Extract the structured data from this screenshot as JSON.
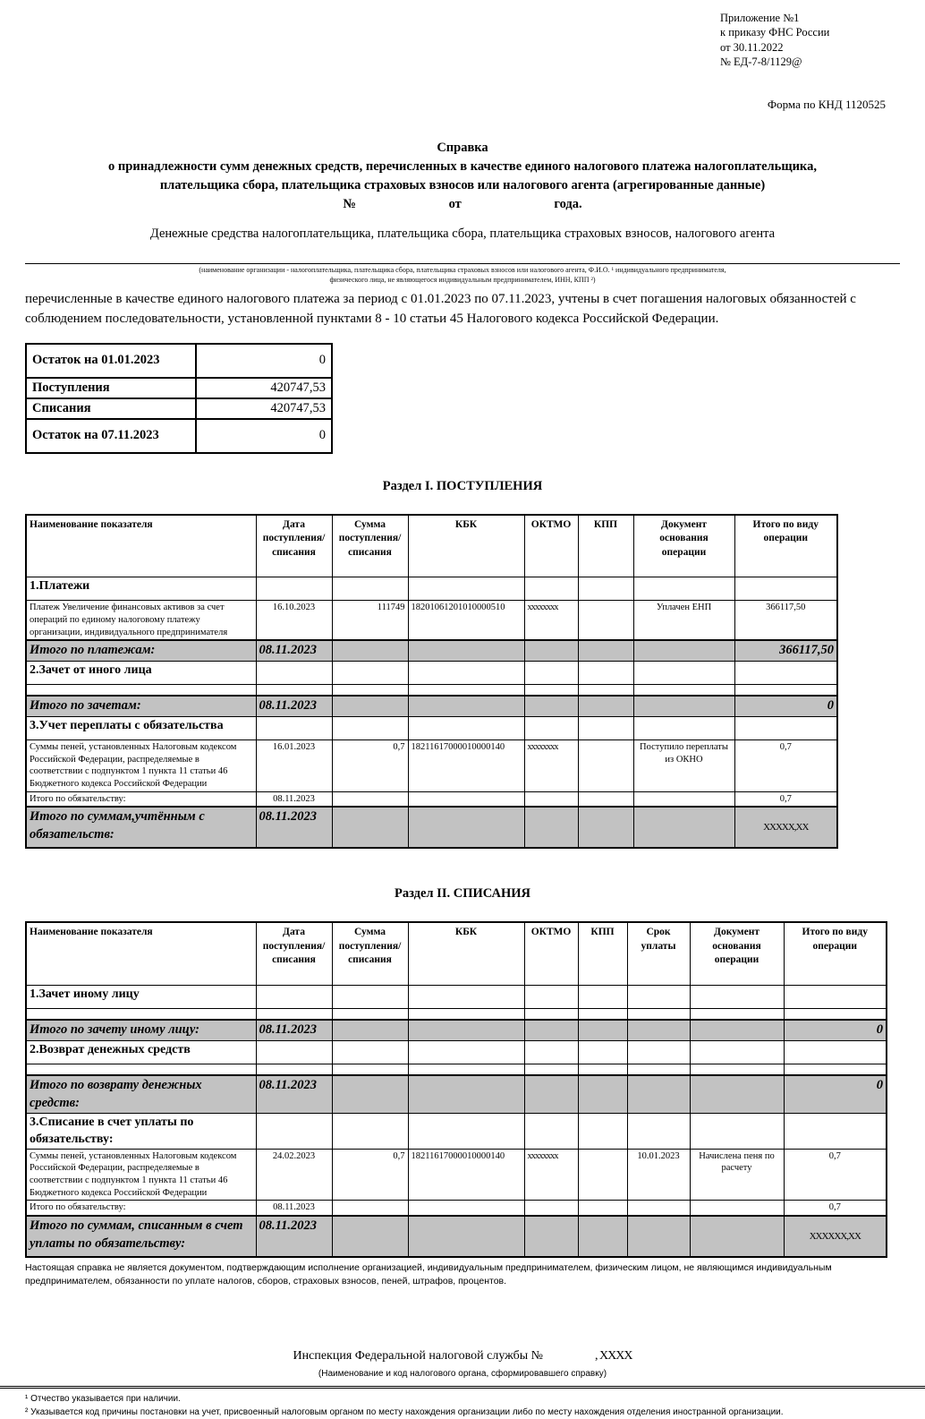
{
  "header": {
    "appendix_lines": [
      "Приложение №1",
      "к приказу ФНС России",
      "от 30.11.2022",
      "№ ЕД-7-8/1129@"
    ],
    "knd": "Форма по КНД 1120525"
  },
  "title": {
    "line1": "Справка",
    "line2": "о принадлежности сумм денежных средств, перечисленных в качестве единого налогового платежа налогоплательщика,",
    "line3": "плательщика сбора, плательщика страховых взносов или налогового агента (агрегированные данные)",
    "number_label": "№",
    "from_label": "от",
    "year_label": "года."
  },
  "intro": {
    "line1": "Денежные средства налогоплательщика, плательщика сбора, плательщика страховых взносов, налогового агента",
    "org_caption_line1": "(наименование организации - налогоплательщика, плательщика сбора, плательщика страховых взносов или налогового агента, Ф.И.О. ¹ индивидуального предпринимателя,",
    "org_caption_line2": "физического лица, не являющегося индивидуальным предпринимателем, ИНН, КПП ²)",
    "paragraph": "перечисленные  в качестве единого налогового платежа за период с 01.01.2023 по 07.11.2023, учтены в счет погашения налоговых обязанностей с соблюдением последовательности,  установленной  пунктами  8  -  10 статьи 45 Налогового кодекса Российской Федерации."
  },
  "summary_table": {
    "rows": [
      {
        "label": "Остаток на 01.01.2023",
        "value": "0"
      },
      {
        "label": "Поступления",
        "value": "420747,53"
      },
      {
        "label": "Списания",
        "value": "420747,53"
      },
      {
        "label": "Остаток на 07.11.2023",
        "value": "0"
      }
    ]
  },
  "section1": {
    "title": "Раздел I. ПОСТУПЛЕНИЯ",
    "headers": [
      "Наименование показателя",
      "Дата поступления/ списания",
      "Сумма поступления/ списания",
      "КБК",
      "ОКТМО",
      "КПП",
      "Документ основания операции",
      "Итого по виду операции"
    ],
    "rows": [
      {
        "type": "subsection",
        "cells": [
          "1.Платежи",
          "",
          "",
          "",
          "",
          "",
          "",
          ""
        ]
      },
      {
        "type": "data",
        "cells": [
          "Платеж Увеличение финансовых активов за счет операций по единому налоговому платежу организации, индивидуального предпринимателя",
          "16.10.2023",
          "111749",
          "18201061201010000510",
          "xxxxxxxx",
          "",
          "Уплачен ЕНП",
          "366117,50"
        ]
      },
      {
        "type": "total",
        "cells": [
          "Итого по платежам:",
          "08.11.2023",
          "",
          "",
          "",
          "",
          "",
          "366117,50"
        ]
      },
      {
        "type": "subsection",
        "cells": [
          "2.Зачет от иного лица",
          "",
          "",
          "",
          "",
          "",
          "",
          ""
        ]
      },
      {
        "type": "empty",
        "cells": [
          "",
          "",
          "",
          "",
          "",
          "",
          "",
          ""
        ]
      },
      {
        "type": "total",
        "cells": [
          "Итого по зачетам:",
          "08.11.2023",
          "",
          "",
          "",
          "",
          "",
          "0"
        ]
      },
      {
        "type": "subsection",
        "cells": [
          "3.Учет переплаты с обязательства",
          "",
          "",
          "",
          "",
          "",
          "",
          ""
        ]
      },
      {
        "type": "data",
        "cells": [
          "Суммы пеней, установленных Налоговым кодексом Российской Федерации, распределяемые в соответствии с подпунктом 1 пункта 11 статьи 46 Бюджетного кодекса Российской Федерации",
          "16.01.2023",
          "0,7",
          "18211617000010000140",
          "xxxxxxxx",
          "",
          "Поступило переплаты из ОКНО",
          "0,7"
        ]
      },
      {
        "type": "smalltotal",
        "cells": [
          "Итого по обязательству:",
          "08.11.2023",
          "",
          "",
          "",
          "",
          "",
          "0,7"
        ]
      },
      {
        "type": "grandtotal",
        "cells": [
          "Итого по суммам,учтённым с обязательств:",
          "08.11.2023",
          "",
          "",
          "",
          "",
          "",
          "XXXXX,XX"
        ]
      }
    ]
  },
  "section2": {
    "title": "Раздел II. СПИСАНИЯ",
    "headers": [
      "Наименование показателя",
      "Дата поступления/ списания",
      "Сумма поступления/ списания",
      "КБК",
      "ОКТМО",
      "КПП",
      "Срок уплаты",
      "Документ основания операции",
      "Итого по виду операции"
    ],
    "rows": [
      {
        "type": "subsection",
        "cells": [
          "1.Зачет иному лицу",
          "",
          "",
          "",
          "",
          "",
          "",
          "",
          ""
        ]
      },
      {
        "type": "empty",
        "cells": [
          "",
          "",
          "",
          "",
          "",
          "",
          "",
          "",
          ""
        ]
      },
      {
        "type": "total",
        "cells": [
          "Итого по зачету иному лицу:",
          "08.11.2023",
          "",
          "",
          "",
          "",
          "",
          "",
          "0"
        ]
      },
      {
        "type": "subsection",
        "cells": [
          "2.Возврат денежных средств",
          "",
          "",
          "",
          "",
          "",
          "",
          "",
          ""
        ]
      },
      {
        "type": "empty",
        "cells": [
          "",
          "",
          "",
          "",
          "",
          "",
          "",
          "",
          ""
        ]
      },
      {
        "type": "total",
        "cells": [
          "Итого по возврату денежных средств:",
          "08.11.2023",
          "",
          "",
          "",
          "",
          "",
          "",
          "0"
        ]
      },
      {
        "type": "subsection",
        "cells": [
          "3.Списание в счет уплаты по обязательству:",
          "",
          "",
          "",
          "",
          "",
          "",
          "",
          ""
        ]
      },
      {
        "type": "data",
        "cells": [
          "Суммы пеней, установленных Налоговым кодексом Российской Федерации, распределяемые в соответствии с подпунктом 1 пункта 11 статьи 46 Бюджетного кодекса Российской Федерации",
          "24.02.2023",
          "0,7",
          "18211617000010000140",
          "xxxxxxxx",
          "",
          "10.01.2023",
          "Начислена пеня по расчету",
          "0,7"
        ]
      },
      {
        "type": "smalltotal",
        "cells": [
          "Итого по обязательству:",
          "08.11.2023",
          "",
          "",
          "",
          "",
          "",
          "",
          "0,7"
        ]
      },
      {
        "type": "grandtotal",
        "cells": [
          "Итого по суммам, списанным в счет уплаты по обязательству:",
          "08.11.2023",
          "",
          "",
          "",
          "",
          "",
          "",
          "XXXXXX,XX"
        ]
      }
    ]
  },
  "footer": {
    "note": "Настоящая справка не является документом, подтверждающим исполнение организацией, индивидуальным предпринимателем, физическим лицом, не являющимся индивидуальным предпринимателем, обязанности по уплате налогов, сборов, страховых взносов, пеней, штрафов, процентов.",
    "inspection_label": "Инспекция Федеральной налоговой службы №",
    "inspection_value": ", XXXX",
    "inspection_caption": "(Наименование и код налогового органа, сформировавшего справку)",
    "footnotes": [
      "¹ Отчество указывается при наличии.",
      "² Указывается код причины постановки на учет, присвоенный налоговым органом по месту нахождения организации либо по месту нахождения отделения иностранной организации."
    ]
  }
}
